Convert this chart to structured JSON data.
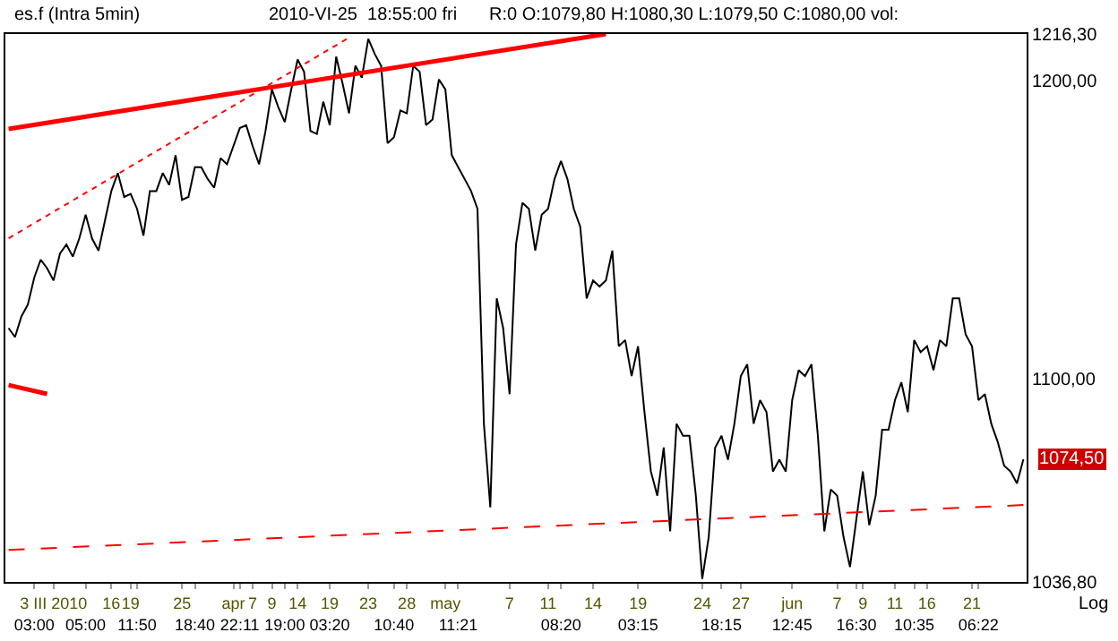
{
  "chart_data": {
    "type": "line",
    "title": "es.f (Intra 5min)",
    "subtitle": "2010-VI-25  18:55:00 fri",
    "annotations": [
      "R:0 O:1079,80 H:1080,30 L:1079,50 C:1080,00 vol:",
      "Log",
      "1074,50"
    ],
    "log": "y",
    "marker": "none",
    "ylim": [
      1036.8,
      1216.3
    ],
    "yticks": [
      {
        "value": 1036.8,
        "label": "1036,80"
      },
      {
        "value": 1100,
        "label": "1100,00"
      },
      {
        "value": 1200,
        "label": "1200,00"
      },
      {
        "value": 1216.3,
        "label": "1216,30"
      }
    ],
    "categories": [
      null,
      null,
      null,
      null,
      "\n03:00",
      null,
      null,
      "3 III 2010",
      null,
      null,
      null,
      null,
      "\n05:00",
      null,
      null,
      null,
      "16",
      null,
      null,
      "19",
      "\n11:50",
      null,
      null,
      null,
      null,
      null,
      null,
      "25",
      null,
      "\n18:40",
      null,
      null,
      null,
      null,
      null,
      "apr",
      "\n22:11",
      null,
      "7",
      null,
      null,
      "9",
      null,
      "\n19:00",
      null,
      "14",
      null,
      null,
      null,
      null,
      "19\n03:20",
      null,
      null,
      null,
      null,
      null,
      "23",
      null,
      null,
      null,
      "\n10:40",
      null,
      "28",
      null,
      null,
      null,
      null,
      null,
      "may",
      null,
      "\n11:21",
      null,
      null,
      null,
      null,
      null,
      null,
      null,
      "7",
      null,
      null,
      null,
      null,
      null,
      "11",
      null,
      "\n08:20",
      null,
      null,
      null,
      null,
      "14",
      null,
      null,
      null,
      null,
      null,
      null,
      "19\n03:15",
      null,
      null,
      null,
      null,
      null,
      null,
      null,
      null,
      null,
      "24",
      null,
      null,
      "\n18:15",
      null,
      null,
      "27",
      null,
      null,
      null,
      null,
      null,
      null,
      null,
      "jun\n12:45",
      null,
      null,
      null,
      null,
      null,
      null,
      "7",
      null,
      null,
      "\n16:30",
      "9",
      null,
      null,
      null,
      null,
      "11",
      null,
      null,
      "\n10:35",
      null,
      "16",
      null,
      null,
      null,
      null,
      null,
      null,
      "21",
      "\n06:22",
      null,
      null,
      null,
      null,
      null,
      null,
      null
    ],
    "series": [
      {
        "color": "#000000",
        "line_style": "solid",
        "values": [
          1116.4,
          1113.5,
          1120.2,
          1124.1,
          1133.0,
          1138.9,
          1136.0,
          1132.0,
          1140.9,
          1143.9,
          1139.9,
          1145.9,
          1153.9,
          1145.9,
          1141.9,
          1151.9,
          1161.9,
          1168.0,
          1159.9,
          1160.9,
          1155.9,
          1146.9,
          1161.9,
          1161.9,
          1168.0,
          1164.0,
          1174.1,
          1158.9,
          1159.9,
          1170.0,
          1170.0,
          1166.0,
          1163.0,
          1173.1,
          1171.0,
          1177.2,
          1183.4,
          1184.4,
          1177.2,
          1171.0,
          1182.4,
          1196.8,
          1190.6,
          1185.5,
          1196.8,
          1207.3,
          1203.0,
          1182.4,
          1181.4,
          1192.6,
          1184.4,
          1208.3,
          1198.9,
          1188.5,
          1205.1,
          1200.9,
          1214.6,
          1209.3,
          1205.1,
          1178.2,
          1180.3,
          1189.5,
          1188.5,
          1205.1,
          1203.0,
          1184.4,
          1186.4,
          1200.3,
          1196.8,
          1174.1,
          1170.0,
          1166.0,
          1161.9,
          1155.9,
          1085.7,
          1059.6,
          1126.1,
          1116.4,
          1095.1,
          1143.9,
          1157.9,
          1155.9,
          1141.9,
          1153.9,
          1155.9,
          1166.0,
          1172.1,
          1166.0,
          1155.9,
          1149.9,
          1126.1,
          1132.0,
          1130.0,
          1132.0,
          1141.9,
          1110.5,
          1112.5,
          1100.9,
          1110.5,
          1089.4,
          1070.7,
          1063.2,
          1078.2,
          1052.2,
          1085.7,
          1081.9,
          1081.9,
          1063.2,
          1037.7,
          1050.4,
          1078.2,
          1081.9,
          1074.4,
          1085.7,
          1100.9,
          1104.7,
          1085.7,
          1093.2,
          1089.4,
          1070.7,
          1074.4,
          1070.7,
          1093.2,
          1102.8,
          1100.9,
          1104.7,
          1081.9,
          1052.2,
          1065.1,
          1063.2,
          1050.4,
          1041.3,
          1056.0,
          1070.7,
          1054.1,
          1063.2,
          1083.8,
          1083.8,
          1093.2,
          1098.9,
          1089.4,
          1112.5,
          1108.6,
          1110.5,
          1102.8,
          1112.5,
          1110.5,
          1126.1,
          1126.1,
          1114.4,
          1110.5,
          1093.2,
          1095.1,
          1085.7,
          1080.0,
          1072.5,
          1070.7,
          1067.0,
          1074.5
        ]
      },
      {
        "color": "#ff0000",
        "line_style": "solid",
        "values": [
          1183.1,
          null,
          null,
          null,
          null,
          null,
          null,
          null,
          null,
          null,
          null,
          null,
          null,
          null,
          null,
          null,
          null,
          null,
          null,
          null,
          null,
          null,
          null,
          null,
          null,
          null,
          null,
          null,
          null,
          null,
          null,
          null,
          null,
          null,
          null,
          null,
          null,
          null,
          null,
          null,
          null,
          null,
          null,
          null,
          null,
          null,
          null,
          null,
          null,
          null,
          null,
          null,
          null,
          null,
          null,
          null,
          null,
          null,
          null,
          null,
          null,
          null,
          null,
          null,
          null,
          null,
          null,
          null,
          null,
          null,
          null,
          null,
          null,
          null,
          null,
          null,
          null,
          null,
          null,
          null,
          null,
          null,
          null,
          null,
          null,
          null,
          null,
          null,
          null,
          null,
          null,
          null,
          null,
          1216.3,
          null,
          null,
          null,
          null,
          null,
          null,
          null,
          null,
          null,
          null,
          null,
          null,
          null,
          null,
          null,
          null,
          null,
          null,
          null,
          null,
          null,
          null,
          null,
          null,
          null,
          null,
          null,
          null,
          null,
          null,
          null,
          null,
          null,
          null,
          null,
          null,
          null,
          null,
          null,
          null,
          null,
          null,
          null,
          null,
          null,
          null,
          null,
          null,
          null,
          null,
          null,
          null,
          null,
          null,
          null,
          null,
          null,
          null,
          null,
          null,
          null,
          null,
          null,
          null,
          null
        ]
      },
      {
        "color": "#ff0000",
        "line_style": "solid",
        "values": [
          1098.0,
          null,
          null,
          null,
          null,
          null,
          1095.2,
          null,
          null,
          null,
          null,
          null,
          null,
          null,
          null,
          null,
          null,
          null,
          null,
          null,
          null,
          null,
          null,
          null,
          null,
          null,
          null,
          null,
          null,
          null,
          null,
          null,
          null,
          null,
          null,
          null,
          null,
          null,
          null,
          null,
          null,
          null,
          null,
          null,
          null,
          null,
          null,
          null,
          null,
          null,
          null,
          null,
          null,
          null,
          null,
          null,
          null,
          null,
          null,
          null,
          null,
          null,
          null,
          null,
          null,
          null,
          null,
          null,
          null,
          null,
          null,
          null,
          null,
          null,
          null,
          null,
          null,
          null,
          null,
          null,
          null,
          null,
          null,
          null,
          null,
          null,
          null,
          null,
          null,
          null,
          null,
          null,
          null,
          null,
          null,
          null,
          null,
          null,
          null,
          null,
          null,
          null,
          null,
          null,
          null,
          null,
          null,
          null,
          null,
          null,
          null,
          null,
          null,
          null,
          null,
          null,
          null,
          null,
          null,
          null,
          null,
          null,
          null,
          null,
          null,
          null,
          null,
          null,
          null,
          null,
          null,
          null,
          null,
          null,
          null,
          null,
          null,
          null,
          null,
          null,
          null,
          null,
          null,
          null,
          null,
          null,
          null,
          null,
          null,
          null,
          null,
          null,
          null,
          null,
          null,
          null,
          null,
          null,
          null
        ]
      },
      {
        "color": "#ff0000",
        "line_style": "dotted",
        "values": [
          1146.0,
          null,
          null,
          null,
          null,
          null,
          null,
          null,
          null,
          null,
          null,
          null,
          null,
          null,
          null,
          null,
          null,
          null,
          null,
          null,
          null,
          null,
          null,
          null,
          null,
          null,
          null,
          null,
          null,
          null,
          null,
          null,
          null,
          null,
          null,
          null,
          null,
          null,
          null,
          null,
          null,
          null,
          null,
          null,
          null,
          null,
          null,
          null,
          null,
          null,
          null,
          null,
          null,
          1215.0,
          null,
          null,
          null,
          null,
          null,
          null,
          null,
          null,
          null,
          null,
          null,
          null,
          null,
          null,
          null,
          null,
          null,
          null,
          null,
          null,
          null,
          null,
          null,
          null,
          null,
          null,
          null,
          null,
          null,
          null,
          null,
          null,
          null,
          null,
          null,
          null,
          null,
          null,
          null,
          null,
          null,
          null,
          null,
          null,
          null,
          null,
          null,
          null,
          null,
          null,
          null,
          null,
          null,
          null,
          null,
          null,
          null,
          null,
          null,
          null,
          null,
          null,
          null,
          null,
          null,
          null,
          null,
          null,
          null,
          null,
          null,
          null,
          null,
          null,
          null,
          null,
          null,
          null,
          null,
          null,
          null,
          null,
          null,
          null,
          null,
          null,
          null,
          null,
          null,
          null,
          null,
          null,
          null,
          null,
          null,
          null,
          null,
          null,
          null,
          null,
          null,
          null,
          null,
          null,
          null
        ]
      },
      {
        "color": "#ff0000",
        "line_style": "dashed",
        "values": [
          1046.5,
          null,
          null,
          null,
          null,
          null,
          null,
          null,
          null,
          null,
          null,
          null,
          null,
          null,
          null,
          null,
          null,
          null,
          null,
          null,
          null,
          null,
          null,
          null,
          null,
          null,
          null,
          null,
          null,
          null,
          null,
          null,
          null,
          null,
          null,
          null,
          null,
          null,
          null,
          null,
          null,
          null,
          null,
          null,
          null,
          null,
          null,
          null,
          null,
          null,
          null,
          null,
          null,
          null,
          null,
          null,
          null,
          null,
          null,
          null,
          null,
          null,
          null,
          null,
          null,
          null,
          null,
          null,
          null,
          null,
          null,
          null,
          null,
          null,
          null,
          null,
          null,
          null,
          null,
          null,
          null,
          null,
          null,
          null,
          null,
          null,
          null,
          null,
          null,
          null,
          null,
          null,
          null,
          null,
          null,
          null,
          null,
          null,
          null,
          null,
          null,
          null,
          null,
          null,
          null,
          null,
          null,
          null,
          null,
          null,
          null,
          null,
          null,
          null,
          null,
          null,
          null,
          null,
          null,
          null,
          null,
          null,
          null,
          null,
          null,
          null,
          null,
          null,
          null,
          null,
          null,
          null,
          null,
          null,
          null,
          null,
          null,
          null,
          null,
          null,
          null,
          null,
          null,
          null,
          null,
          null,
          null,
          null,
          null,
          null,
          null,
          null,
          null,
          null,
          null,
          null,
          null,
          null,
          1060.3
        ]
      }
    ]
  }
}
